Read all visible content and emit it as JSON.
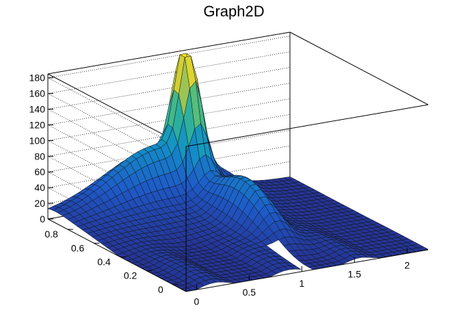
{
  "chart_data": {
    "type": "surface",
    "title": "Graph2D",
    "x": {
      "range": [
        -0.1,
        2.2
      ],
      "ticks": [
        0,
        0.5,
        1,
        1.5,
        2
      ],
      "tick_labels": [
        "0",
        "0.5",
        "1",
        "1.5",
        "2"
      ]
    },
    "y": {
      "range": [
        -0.1,
        0.95
      ],
      "ticks": [
        0,
        0.2,
        0.4,
        0.6,
        0.8
      ],
      "tick_labels": [
        "0",
        "0.2",
        "0.4",
        "0.6",
        "0.8"
      ]
    },
    "z": {
      "range": [
        0,
        185
      ],
      "ticks": [
        0,
        20,
        40,
        60,
        80,
        100,
        120,
        140,
        160,
        180
      ],
      "tick_labels": [
        "0",
        "20",
        "40",
        "60",
        "80",
        "100",
        "120",
        "140",
        "160",
        "180"
      ]
    },
    "grid": true,
    "colormap": "viridis",
    "surface": {
      "description_hidden": false,
      "peak": {
        "x": 1.15,
        "y": 0.9,
        "z": 180
      },
      "ridge_height_back": 55,
      "mid_bump": {
        "x": 1.2,
        "y": 0.45,
        "z": 60
      },
      "plateau_height": 22,
      "notch_x": 1.0
    }
  }
}
